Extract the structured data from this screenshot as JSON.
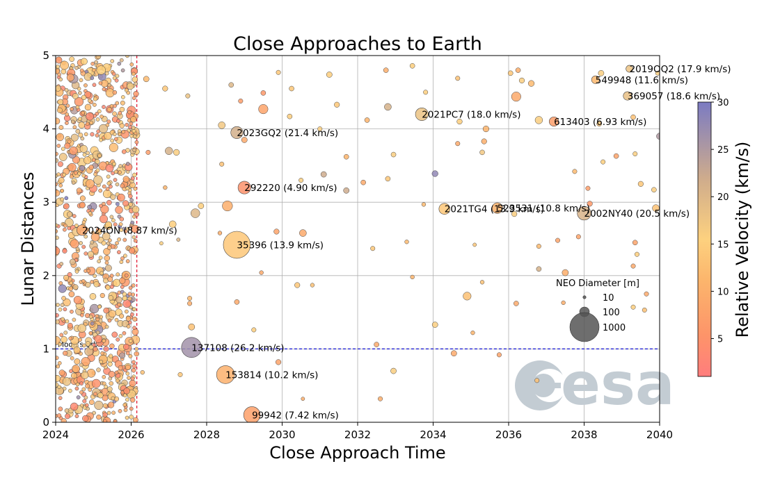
{
  "chart_data": {
    "type": "scatter",
    "title": "Close Approaches to Earth",
    "xlabel": "Close Approach Time",
    "ylabel": "Lunar Distances",
    "xlim": [
      2024,
      2040
    ],
    "ylim": [
      0,
      5
    ],
    "xticks": [
      "2024",
      "2026",
      "2028",
      "2030",
      "2032",
      "2034",
      "2036",
      "2038",
      "2040"
    ],
    "yticks": [
      "0",
      "1",
      "2",
      "3",
      "4",
      "5"
    ],
    "grid": true,
    "today_marker_year": 2026.15,
    "moon_orbit": {
      "ld": 1.0,
      "label": "Moon's orbit"
    },
    "colorbar": {
      "label": "Relative Velocity (km/s)",
      "min": 1,
      "max": 30,
      "ticks": [
        "5",
        "10",
        "15",
        "20",
        "25",
        "30"
      ]
    },
    "size_legend": {
      "title": "NEO Diameter [m]",
      "entries": [
        "10",
        "100",
        "1000"
      ]
    },
    "named_objects": [
      {
        "name": "2019OQ2",
        "label": "2019OQ2 (17.9 km/s)",
        "x": 2039.2,
        "y": 4.82,
        "velocity": 17.9,
        "diameter": 60
      },
      {
        "name": "549948",
        "label": "549948 (11.6 km/s)",
        "x": 2038.3,
        "y": 4.67,
        "velocity": 11.6,
        "diameter": 75
      },
      {
        "name": "369057",
        "label": "369057 (18.6 km/s)",
        "x": 2039.15,
        "y": 4.45,
        "velocity": 18.6,
        "diameter": 90
      },
      {
        "name": "2021PC7",
        "label": "2021PC7 (18.0 km/s)",
        "x": 2033.7,
        "y": 4.2,
        "velocity": 18.0,
        "diameter": 200
      },
      {
        "name": "613403",
        "label": "613403 (6.93 km/s)",
        "x": 2037.2,
        "y": 4.1,
        "velocity": 6.93,
        "diameter": 110
      },
      {
        "name": "2023GQ2",
        "label": "2023GQ2 (21.4 km/s)",
        "x": 2028.8,
        "y": 3.95,
        "velocity": 21.4,
        "diameter": 180
      },
      {
        "name": "292220",
        "label": "292220 (4.90 km/s)",
        "x": 2029.0,
        "y": 3.2,
        "velocity": 4.9,
        "diameter": 200
      },
      {
        "name": "2021TG4",
        "label": "2021TG4 (13.9 km/s)",
        "x": 2034.3,
        "y": 2.91,
        "velocity": 13.9,
        "diameter": 150
      },
      {
        "name": "523531",
        "label": "523531 (10.8 km/s)",
        "x": 2035.7,
        "y": 2.92,
        "velocity": 10.8,
        "diameter": 140
      },
      {
        "name": "2002NY40",
        "label": "2002NY40 (20.5 km/s)",
        "x": 2038.0,
        "y": 2.85,
        "velocity": 20.5,
        "diameter": 230
      },
      {
        "name": "2024ON",
        "label": "2024ON (8.87 km/s)",
        "x": 2024.7,
        "y": 2.62,
        "velocity": 8.87,
        "diameter": 140
      },
      {
        "name": "35396",
        "label": "35396 (13.9 km/s)",
        "x": 2028.8,
        "y": 2.42,
        "velocity": 13.9,
        "diameter": 900
      },
      {
        "name": "137108",
        "label": "137108 (26.2 km/s)",
        "x": 2027.6,
        "y": 1.02,
        "velocity": 26.2,
        "diameter": 500
      },
      {
        "name": "153814",
        "label": "153814 (10.2 km/s)",
        "x": 2028.5,
        "y": 0.65,
        "velocity": 10.2,
        "diameter": 400
      },
      {
        "name": "99942",
        "label": "99942 (7.42 km/s)",
        "x": 2029.2,
        "y": 0.1,
        "velocity": 7.42,
        "diameter": 340
      }
    ],
    "background_points": [
      {
        "x": 2026.4,
        "y": 4.68,
        "velocity": 12,
        "diameter": 40
      },
      {
        "x": 2026.9,
        "y": 4.55,
        "velocity": 14,
        "diameter": 35
      },
      {
        "x": 2027.5,
        "y": 4.45,
        "velocity": 18,
        "diameter": 25
      },
      {
        "x": 2027.0,
        "y": 3.7,
        "velocity": 21,
        "diameter": 70
      },
      {
        "x": 2027.2,
        "y": 3.68,
        "velocity": 16,
        "diameter": 45
      },
      {
        "x": 2026.45,
        "y": 3.68,
        "velocity": 7,
        "diameter": 25
      },
      {
        "x": 2026.9,
        "y": 3.2,
        "velocity": 11,
        "diameter": 20
      },
      {
        "x": 2027.1,
        "y": 2.7,
        "velocity": 15,
        "diameter": 60
      },
      {
        "x": 2027.7,
        "y": 2.85,
        "velocity": 20,
        "diameter": 100
      },
      {
        "x": 2027.85,
        "y": 2.95,
        "velocity": 15,
        "diameter": 40
      },
      {
        "x": 2028.55,
        "y": 2.95,
        "velocity": 10,
        "diameter": 130
      },
      {
        "x": 2028.4,
        "y": 3.52,
        "velocity": 13,
        "diameter": 25
      },
      {
        "x": 2028.4,
        "y": 4.05,
        "velocity": 17,
        "diameter": 60
      },
      {
        "x": 2028.65,
        "y": 4.6,
        "velocity": 20,
        "diameter": 30
      },
      {
        "x": 2028.9,
        "y": 4.38,
        "velocity": 7,
        "diameter": 25
      },
      {
        "x": 2029.0,
        "y": 3.85,
        "velocity": 9,
        "diameter": 40
      },
      {
        "x": 2029.5,
        "y": 4.27,
        "velocity": 8,
        "diameter": 110
      },
      {
        "x": 2029.5,
        "y": 4.49,
        "velocity": 6,
        "diameter": 30
      },
      {
        "x": 2029.9,
        "y": 4.77,
        "velocity": 14,
        "diameter": 25
      },
      {
        "x": 2030.25,
        "y": 4.55,
        "velocity": 14,
        "diameter": 30
      },
      {
        "x": 2030.5,
        "y": 3.3,
        "velocity": 16,
        "diameter": 25
      },
      {
        "x": 2030.55,
        "y": 2.58,
        "velocity": 9,
        "diameter": 60
      },
      {
        "x": 2029.85,
        "y": 2.6,
        "velocity": 8,
        "diameter": 35
      },
      {
        "x": 2030.4,
        "y": 1.87,
        "velocity": 14,
        "diameter": 35
      },
      {
        "x": 2030.8,
        "y": 1.87,
        "velocity": 13,
        "diameter": 20
      },
      {
        "x": 2031.1,
        "y": 3.38,
        "velocity": 22,
        "diameter": 40
      },
      {
        "x": 2031.25,
        "y": 4.74,
        "velocity": 15,
        "diameter": 40
      },
      {
        "x": 2031.45,
        "y": 4.33,
        "velocity": 14,
        "diameter": 35
      },
      {
        "x": 2031.7,
        "y": 3.62,
        "velocity": 11,
        "diameter": 30
      },
      {
        "x": 2031.7,
        "y": 3.16,
        "velocity": 22,
        "diameter": 40
      },
      {
        "x": 2032.25,
        "y": 4.12,
        "velocity": 11,
        "diameter": 30
      },
      {
        "x": 2032.15,
        "y": 3.27,
        "velocity": 9,
        "diameter": 30
      },
      {
        "x": 2032.4,
        "y": 2.37,
        "velocity": 14,
        "diameter": 25
      },
      {
        "x": 2032.8,
        "y": 4.3,
        "velocity": 21,
        "diameter": 60
      },
      {
        "x": 2032.95,
        "y": 3.65,
        "velocity": 16,
        "diameter": 30
      },
      {
        "x": 2032.8,
        "y": 3.32,
        "velocity": 14,
        "diameter": 30
      },
      {
        "x": 2032.75,
        "y": 4.8,
        "velocity": 10,
        "diameter": 30
      },
      {
        "x": 2033.45,
        "y": 4.86,
        "velocity": 15,
        "diameter": 30
      },
      {
        "x": 2033.3,
        "y": 2.46,
        "velocity": 12,
        "diameter": 20
      },
      {
        "x": 2033.45,
        "y": 1.98,
        "velocity": 11,
        "diameter": 20
      },
      {
        "x": 2033.8,
        "y": 4.5,
        "velocity": 15,
        "diameter": 25
      },
      {
        "x": 2034.05,
        "y": 3.39,
        "velocity": 28,
        "diameter": 45
      },
      {
        "x": 2034.05,
        "y": 1.33,
        "velocity": 16,
        "diameter": 40
      },
      {
        "x": 2034.65,
        "y": 4.69,
        "velocity": 13,
        "diameter": 25
      },
      {
        "x": 2034.7,
        "y": 4.1,
        "velocity": 15,
        "diameter": 35
      },
      {
        "x": 2034.65,
        "y": 3.8,
        "velocity": 9,
        "diameter": 25
      },
      {
        "x": 2035.3,
        "y": 3.68,
        "velocity": 17,
        "diameter": 30
      },
      {
        "x": 2035.4,
        "y": 4.0,
        "velocity": 11,
        "diameter": 45
      },
      {
        "x": 2035.35,
        "y": 3.83,
        "velocity": 10,
        "diameter": 35
      },
      {
        "x": 2034.9,
        "y": 1.72,
        "velocity": 13,
        "diameter": 80
      },
      {
        "x": 2034.55,
        "y": 0.94,
        "velocity": 9,
        "diameter": 40
      },
      {
        "x": 2035.75,
        "y": 0.92,
        "velocity": 8,
        "diameter": 25
      },
      {
        "x": 2036.2,
        "y": 1.62,
        "velocity": 9,
        "diameter": 30
      },
      {
        "x": 2036.2,
        "y": 4.44,
        "velocity": 9,
        "diameter": 110
      },
      {
        "x": 2036.25,
        "y": 4.8,
        "velocity": 10,
        "diameter": 30
      },
      {
        "x": 2036.05,
        "y": 4.76,
        "velocity": 14,
        "diameter": 30
      },
      {
        "x": 2036.35,
        "y": 4.66,
        "velocity": 16,
        "diameter": 35
      },
      {
        "x": 2036.6,
        "y": 4.62,
        "velocity": 12,
        "diameter": 45
      },
      {
        "x": 2036.8,
        "y": 4.12,
        "velocity": 16,
        "diameter": 70
      },
      {
        "x": 2036.8,
        "y": 2.4,
        "velocity": 12,
        "diameter": 25
      },
      {
        "x": 2036.8,
        "y": 2.09,
        "velocity": 21,
        "diameter": 30
      },
      {
        "x": 2037.3,
        "y": 2.48,
        "velocity": 8,
        "diameter": 25
      },
      {
        "x": 2037.5,
        "y": 2.04,
        "velocity": 10,
        "diameter": 50
      },
      {
        "x": 2037.75,
        "y": 3.42,
        "velocity": 12,
        "diameter": 25
      },
      {
        "x": 2037.85,
        "y": 2.53,
        "velocity": 8,
        "diameter": 25
      },
      {
        "x": 2038.1,
        "y": 3.19,
        "velocity": 7,
        "diameter": 25
      },
      {
        "x": 2038.15,
        "y": 2.98,
        "velocity": 6,
        "diameter": 35
      },
      {
        "x": 2038.5,
        "y": 3.55,
        "velocity": 15,
        "diameter": 25
      },
      {
        "x": 2038.85,
        "y": 3.63,
        "velocity": 8,
        "diameter": 30
      },
      {
        "x": 2039.35,
        "y": 3.66,
        "velocity": 16,
        "diameter": 25
      },
      {
        "x": 2039.5,
        "y": 3.25,
        "velocity": 14,
        "diameter": 35
      },
      {
        "x": 2039.85,
        "y": 3.17,
        "velocity": 16,
        "diameter": 30
      },
      {
        "x": 2039.9,
        "y": 2.92,
        "velocity": 13,
        "diameter": 60
      },
      {
        "x": 2039.35,
        "y": 2.45,
        "velocity": 8,
        "diameter": 30
      },
      {
        "x": 2039.4,
        "y": 2.29,
        "velocity": 15,
        "diameter": 25
      },
      {
        "x": 2039.3,
        "y": 2.13,
        "velocity": 9,
        "diameter": 25
      },
      {
        "x": 2039.3,
        "y": 1.57,
        "velocity": 15,
        "diameter": 25
      },
      {
        "x": 2039.6,
        "y": 1.53,
        "velocity": 13,
        "diameter": 25
      },
      {
        "x": 2039.65,
        "y": 1.75,
        "velocity": 9,
        "diameter": 25
      },
      {
        "x": 2038.4,
        "y": 4.07,
        "velocity": 14,
        "diameter": 30
      },
      {
        "x": 2038.45,
        "y": 4.76,
        "velocity": 16,
        "diameter": 40
      },
      {
        "x": 2039.3,
        "y": 4.16,
        "velocity": 13,
        "diameter": 30
      },
      {
        "x": 2039.95,
        "y": 4.76,
        "velocity": 16,
        "diameter": 25
      },
      {
        "x": 2040.0,
        "y": 3.9,
        "velocity": 25,
        "diameter": 50
      },
      {
        "x": 2033.75,
        "y": 2.97,
        "velocity": 12,
        "diameter": 20
      },
      {
        "x": 2036.15,
        "y": 2.84,
        "velocity": 16,
        "diameter": 35
      },
      {
        "x": 2035.05,
        "y": 1.22,
        "velocity": 11,
        "diameter": 20
      },
      {
        "x": 2032.5,
        "y": 1.06,
        "velocity": 9,
        "diameter": 30
      },
      {
        "x": 2032.95,
        "y": 0.7,
        "velocity": 16,
        "diameter": 40
      },
      {
        "x": 2032.6,
        "y": 0.32,
        "velocity": 10,
        "diameter": 25
      },
      {
        "x": 2036.75,
        "y": 0.57,
        "velocity": 13,
        "diameter": 25
      },
      {
        "x": 2029.9,
        "y": 0.82,
        "velocity": 8,
        "diameter": 35
      },
      {
        "x": 2029.25,
        "y": 1.26,
        "velocity": 15,
        "diameter": 25
      },
      {
        "x": 2028.8,
        "y": 1.64,
        "velocity": 9,
        "diameter": 30
      },
      {
        "x": 2027.6,
        "y": 1.3,
        "velocity": 13,
        "diameter": 50
      },
      {
        "x": 2027.55,
        "y": 1.69,
        "velocity": 12,
        "diameter": 25
      },
      {
        "x": 2027.55,
        "y": 1.62,
        "velocity": 10,
        "diameter": 25
      },
      {
        "x": 2027.3,
        "y": 0.65,
        "velocity": 14,
        "diameter": 25
      },
      {
        "x": 2030.55,
        "y": 0.32,
        "velocity": 10,
        "diameter": 15
      },
      {
        "x": 2026.3,
        "y": 0.68,
        "velocity": 13,
        "diameter": 20
      },
      {
        "x": 2029.45,
        "y": 2.04,
        "velocity": 9,
        "diameter": 20
      },
      {
        "x": 2028.35,
        "y": 2.58,
        "velocity": 10,
        "diameter": 20
      },
      {
        "x": 2026.8,
        "y": 2.44,
        "velocity": 16,
        "diameter": 15
      },
      {
        "x": 2027.25,
        "y": 2.49,
        "velocity": 20,
        "diameter": 15
      },
      {
        "x": 2030.2,
        "y": 4.17,
        "velocity": 15,
        "diameter": 30
      },
      {
        "x": 2031.0,
        "y": 4.0,
        "velocity": 16,
        "diameter": 25
      },
      {
        "x": 2035.1,
        "y": 2.42,
        "velocity": 14,
        "diameter": 15
      },
      {
        "x": 2035.3,
        "y": 1.91,
        "velocity": 13,
        "diameter": 20
      },
      {
        "x": 2037.45,
        "y": 1.63,
        "velocity": 10,
        "diameter": 20
      }
    ]
  },
  "watermark": {
    "text": "esa"
  }
}
